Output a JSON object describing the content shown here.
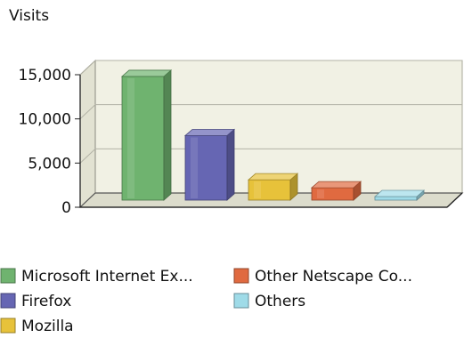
{
  "chart_data": {
    "type": "bar",
    "title": "",
    "ylabel": "Visits",
    "xlabel": "",
    "ylim": [
      0,
      15000
    ],
    "yticks": [
      0,
      5000,
      10000,
      15000
    ],
    "ytick_labels": [
      "0",
      "5,000",
      "10,000",
      "15,000"
    ],
    "grid": true,
    "style": "3d",
    "legend_position": "bottom",
    "categories": [
      "Microsoft Internet Ex...",
      "Firefox",
      "Mozilla",
      "Other Netscape Co...",
      "Others"
    ],
    "values": [
      14000,
      7300,
      2300,
      1400,
      400
    ],
    "colors": [
      "#6fb36f",
      "#6666b3",
      "#e7c23a",
      "#e06a40",
      "#9fdbe8"
    ]
  }
}
